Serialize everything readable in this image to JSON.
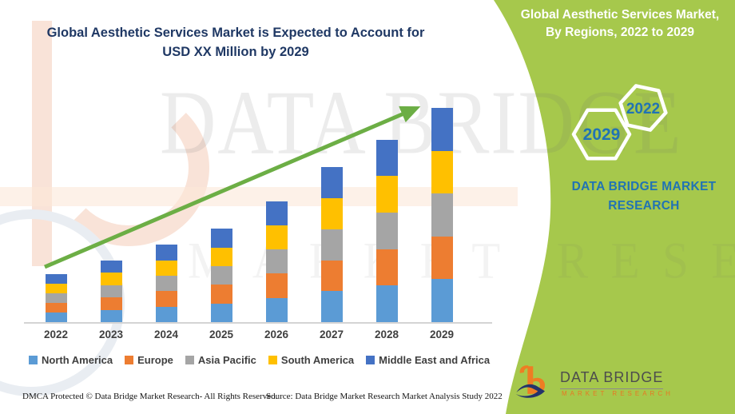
{
  "left_title": {
    "line1": "Global Aesthetic Services Market is Expected to Account for",
    "line2": "USD XX Million by 2029"
  },
  "right_panel": {
    "title_line1": "Global Aesthetic Services Market,",
    "title_line2": "By Regions, 2022 to 2029",
    "hex_front_label": "2029",
    "hex_back_label": "2022",
    "brand_line1": "DATA BRIDGE MARKET",
    "brand_line2": "RESEARCH"
  },
  "watermark": {
    "line1": "DATA BRIDGE",
    "line2": "MARKET RESEARCH"
  },
  "footer": {
    "dmca": "DMCA Protected © Data Bridge Market Research- All Rights Reserved.",
    "source": "Source: Data Bridge Market Research Market Analysis Study 2022"
  },
  "logo": {
    "name": "DATA BRIDGE",
    "tagline": "MARKET RESEARCH"
  },
  "colors": {
    "panel_green": "#a6c84c",
    "arrow_green": "#6cae45",
    "title_navy": "#1f3864",
    "brand_blue": "#2173b4",
    "logo_orange": "#ee7d23",
    "logo_navy": "#24336b",
    "axis_gray": "#d4d4d4",
    "label_gray": "#3f3f3f"
  },
  "chart_data": {
    "type": "bar",
    "stacked": true,
    "title": "Global Aesthetic Services Market is Expected to Account for USD XX Million by 2029",
    "xlabel": "",
    "ylabel": "",
    "note": "Axis values are not labeled in the source (masked as USD XX Million); series values are relative visual estimates, equal split across regions each year.",
    "categories": [
      "2022",
      "2023",
      "2024",
      "2025",
      "2026",
      "2027",
      "2028",
      "2029"
    ],
    "series": [
      {
        "name": "North America",
        "color": "#5B9BD5",
        "values": [
          12,
          15.5,
          19.5,
          23.5,
          30.5,
          39,
          46,
          54
        ]
      },
      {
        "name": "Europe",
        "color": "#ED7D31",
        "values": [
          12,
          15.5,
          19.5,
          23.5,
          30.5,
          39,
          46,
          54
        ]
      },
      {
        "name": "Asia Pacific",
        "color": "#A5A5A5",
        "values": [
          12,
          15.5,
          19.5,
          23.5,
          30.5,
          39,
          46,
          54
        ]
      },
      {
        "name": "South America",
        "color": "#FFC000",
        "values": [
          12,
          15.5,
          19.5,
          23.5,
          30.5,
          39,
          46,
          54
        ]
      },
      {
        "name": "Middle East and Africa",
        "color": "#4472C4",
        "values": [
          12,
          15.5,
          19.5,
          23.5,
          30.5,
          39,
          46,
          54
        ]
      }
    ],
    "ylim": [
      0,
      285
    ],
    "grid": false,
    "legend_position": "bottom",
    "trend_arrow": true
  }
}
